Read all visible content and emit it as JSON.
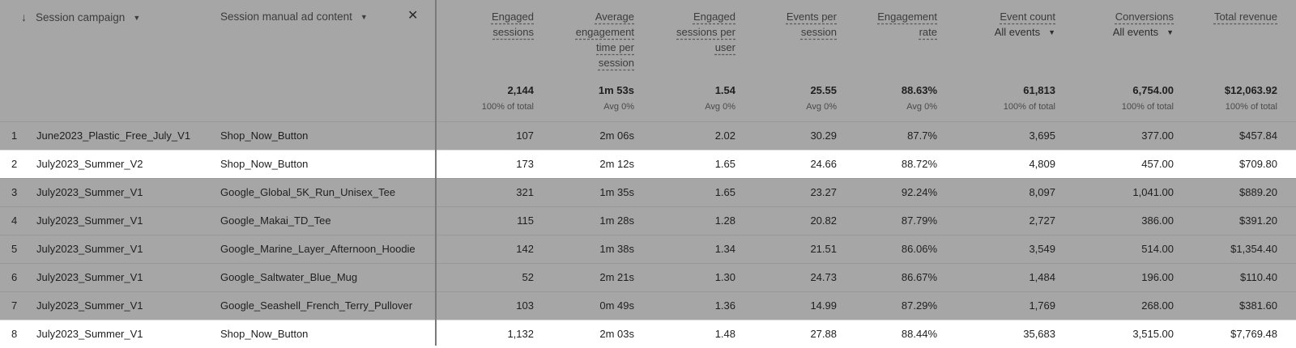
{
  "dimensions": {
    "primary_label": "Session campaign",
    "secondary_label": "Session manual ad content",
    "close_glyph": "✕",
    "sort_glyph": "↓",
    "caret_glyph": "▼"
  },
  "columns": [
    {
      "label": "Engaged sessions",
      "sub": "",
      "total": "2,144",
      "total_sub": "100% of total"
    },
    {
      "label": "Average engagement time per session",
      "sub": "",
      "total": "1m 53s",
      "total_sub": "Avg 0%"
    },
    {
      "label": "Engaged sessions per user",
      "sub": "",
      "total": "1.54",
      "total_sub": "Avg 0%"
    },
    {
      "label": "Events per session",
      "sub": "",
      "total": "25.55",
      "total_sub": "Avg 0%"
    },
    {
      "label": "Engagement rate",
      "sub": "",
      "total": "88.63%",
      "total_sub": "Avg 0%"
    },
    {
      "label": "Event count",
      "sub": "All events",
      "total": "61,813",
      "total_sub": "100% of total"
    },
    {
      "label": "Conversions",
      "sub": "All events",
      "total": "6,754.00",
      "total_sub": "100% of total"
    },
    {
      "label": "Total revenue",
      "sub": "",
      "total": "$12,063.92",
      "total_sub": "100% of total"
    }
  ],
  "rows": [
    {
      "idx": "1",
      "campaign": "June2023_Plastic_Free_July_V1",
      "ad_content": "Shop_Now_Button",
      "values": [
        "107",
        "2m 06s",
        "2.02",
        "30.29",
        "87.7%",
        "3,695",
        "377.00",
        "$457.84"
      ]
    },
    {
      "idx": "2",
      "campaign": "July2023_Summer_V2",
      "ad_content": "Shop_Now_Button",
      "values": [
        "173",
        "2m 12s",
        "1.65",
        "24.66",
        "88.72%",
        "4,809",
        "457.00",
        "$709.80"
      ]
    },
    {
      "idx": "3",
      "campaign": "July2023_Summer_V1",
      "ad_content": "Google_Global_5K_Run_Unisex_Tee",
      "values": [
        "321",
        "1m 35s",
        "1.65",
        "23.27",
        "92.24%",
        "8,097",
        "1,041.00",
        "$889.20"
      ]
    },
    {
      "idx": "4",
      "campaign": "July2023_Summer_V1",
      "ad_content": "Google_Makai_TD_Tee",
      "values": [
        "115",
        "1m 28s",
        "1.28",
        "20.82",
        "87.79%",
        "2,727",
        "386.00",
        "$391.20"
      ]
    },
    {
      "idx": "5",
      "campaign": "July2023_Summer_V1",
      "ad_content": "Google_Marine_Layer_Afternoon_Hoodie",
      "values": [
        "142",
        "1m 38s",
        "1.34",
        "21.51",
        "86.06%",
        "3,549",
        "514.00",
        "$1,354.40"
      ]
    },
    {
      "idx": "6",
      "campaign": "July2023_Summer_V1",
      "ad_content": "Google_Saltwater_Blue_Mug",
      "values": [
        "52",
        "2m 21s",
        "1.30",
        "24.73",
        "86.67%",
        "1,484",
        "196.00",
        "$110.40"
      ]
    },
    {
      "idx": "7",
      "campaign": "July2023_Summer_V1",
      "ad_content": "Google_Seashell_French_Terry_Pullover",
      "values": [
        "103",
        "0m 49s",
        "1.36",
        "14.99",
        "87.29%",
        "1,769",
        "268.00",
        "$381.60"
      ]
    },
    {
      "idx": "8",
      "campaign": "July2023_Summer_V1",
      "ad_content": "Shop_Now_Button",
      "values": [
        "1,132",
        "2m 03s",
        "1.48",
        "27.88",
        "88.44%",
        "35,683",
        "3,515.00",
        "$7,769.48"
      ]
    }
  ],
  "highlighted_rows": [
    "2",
    "8"
  ],
  "colors": {
    "dimmed_bg": "#a6a6a6",
    "highlight_bg": "#ffffff"
  }
}
